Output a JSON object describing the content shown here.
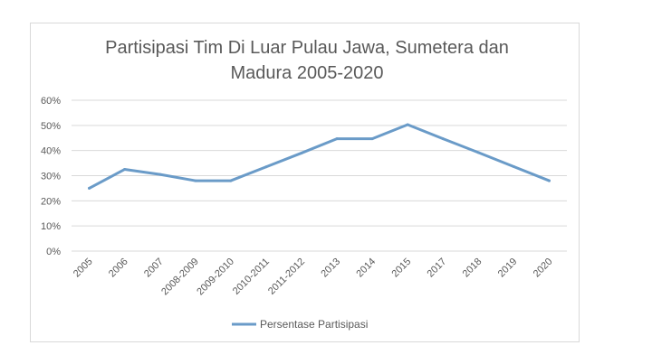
{
  "chart_data": {
    "type": "line",
    "title_lines": [
      "Partisipasi Tim Di Luar Pulau Jawa, Sumetera dan",
      "Madura 2005-2020"
    ],
    "categories": [
      "2005",
      "2006",
      "2007",
      "2008-2009",
      "2009-2010",
      "2010-2011",
      "2011-2012",
      "2013",
      "2014",
      "2015",
      "2017",
      "2018",
      "2019",
      "2020"
    ],
    "series": [
      {
        "name": "Persentase Partisipasi",
        "color": "#6a9bc8",
        "values": [
          0.25,
          0.325,
          0.305,
          0.28,
          0.28,
          0.335,
          0.39,
          0.447,
          0.447,
          0.503,
          0.447,
          0.392,
          0.336,
          0.28
        ]
      }
    ],
    "y_ticks": [
      "0%",
      "10%",
      "20%",
      "30%",
      "40%",
      "50%",
      "60%"
    ],
    "ylim": [
      0,
      0.6
    ],
    "grid": true,
    "legend_position": "bottom"
  }
}
